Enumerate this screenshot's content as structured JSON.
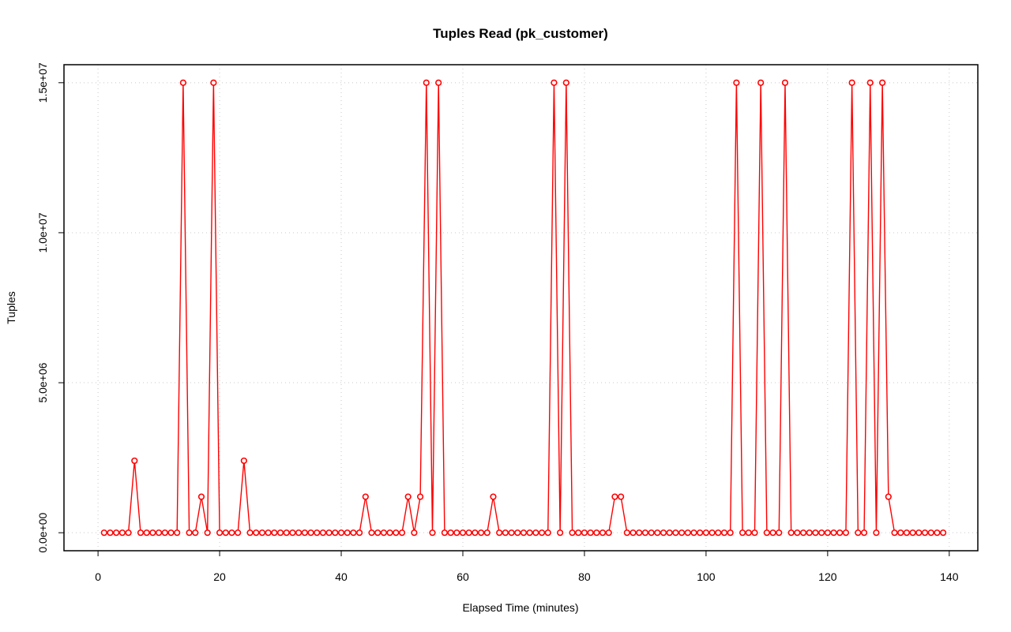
{
  "chart_data": {
    "type": "line",
    "title": "Tuples Read (pk_customer)",
    "x_label": "Elapsed Time (minutes)",
    "y_label": "Tuples",
    "x": [
      1,
      2,
      3,
      4,
      5,
      6,
      7,
      8,
      9,
      10,
      11,
      12,
      13,
      14,
      15,
      16,
      17,
      18,
      19,
      20,
      21,
      22,
      23,
      24,
      25,
      26,
      27,
      28,
      29,
      30,
      31,
      32,
      33,
      34,
      35,
      36,
      37,
      38,
      39,
      40,
      41,
      42,
      43,
      44,
      45,
      46,
      47,
      48,
      49,
      50,
      51,
      52,
      53,
      54,
      55,
      56,
      57,
      58,
      59,
      60,
      61,
      62,
      63,
      64,
      65,
      66,
      67,
      68,
      69,
      70,
      71,
      72,
      73,
      74,
      75,
      76,
      77,
      78,
      79,
      80,
      81,
      82,
      83,
      84,
      85,
      86,
      87,
      88,
      89,
      90,
      91,
      92,
      93,
      94,
      95,
      96,
      97,
      98,
      99,
      100,
      101,
      102,
      103,
      104,
      105,
      106,
      107,
      108,
      109,
      110,
      111,
      112,
      113,
      114,
      115,
      116,
      117,
      118,
      119,
      120,
      121,
      122,
      123,
      124,
      125,
      126,
      127,
      128,
      129,
      130,
      131,
      132,
      133,
      134,
      135,
      136,
      137,
      138,
      139
    ],
    "series": [
      {
        "color": "#ff0000",
        "values": [
          0,
          0,
          0,
          0,
          0,
          2400000,
          0,
          0,
          0,
          0,
          0,
          0,
          0,
          15000000,
          0,
          0,
          1200000,
          0,
          15000000,
          0,
          0,
          0,
          0,
          2400000,
          0,
          0,
          0,
          0,
          0,
          0,
          0,
          0,
          0,
          0,
          0,
          0,
          0,
          0,
          0,
          0,
          0,
          0,
          0,
          1200000,
          0,
          0,
          0,
          0,
          0,
          0,
          1200000,
          0,
          1200000,
          15000000,
          0,
          15000000,
          0,
          0,
          0,
          0,
          0,
          0,
          0,
          0,
          1200000,
          0,
          0,
          0,
          0,
          0,
          0,
          0,
          0,
          0,
          15000000,
          0,
          15000000,
          0,
          0,
          0,
          0,
          0,
          0,
          0,
          1200000,
          1200000,
          0,
          0,
          0,
          0,
          0,
          0,
          0,
          0,
          0,
          0,
          0,
          0,
          0,
          0,
          0,
          0,
          0,
          0,
          15000000,
          0,
          0,
          0,
          15000000,
          0,
          0,
          0,
          15000000,
          0,
          0,
          0,
          0,
          0,
          0,
          0,
          0,
          0,
          0,
          15000000,
          0,
          0,
          15000000,
          0,
          15000000,
          1200000,
          0,
          0,
          0,
          0,
          0,
          0,
          0,
          0,
          0
        ]
      }
    ],
    "xlim": [
      -5.6,
      144.7
    ],
    "ylim": [
      -600000,
      15600000
    ],
    "xticks": [
      0,
      20,
      40,
      60,
      80,
      100,
      120,
      140
    ],
    "yticks": [
      {
        "value": 0,
        "label": "0.0e+00"
      },
      {
        "value": 5000000,
        "label": "5.0e+06"
      },
      {
        "value": 10000000,
        "label": "1.0e+07"
      },
      {
        "value": 15000000,
        "label": "1.5e+07"
      }
    ],
    "grid": true
  }
}
